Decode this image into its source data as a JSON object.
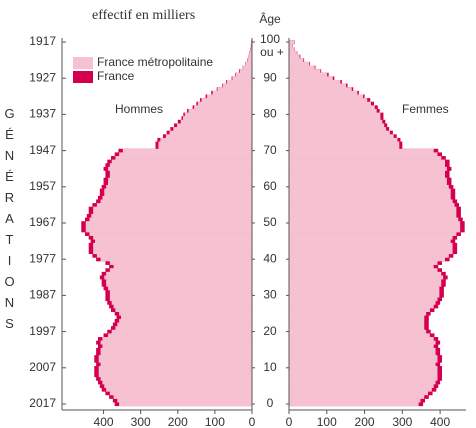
{
  "chart_data": {
    "type": "pyramid",
    "title": "effectif en milliers",
    "ylabel": "Âge",
    "age_top_note": "ou +",
    "y2label": "GÉNÉRATIONS",
    "men_label": "Hommes",
    "women_label": "Femmes",
    "xlim": [
      0,
      450
    ],
    "xticks": [
      0,
      100,
      200,
      300,
      400
    ],
    "ylim": [
      0,
      100
    ],
    "yticks": [
      0,
      10,
      20,
      30,
      40,
      50,
      60,
      70,
      80,
      90,
      100
    ],
    "y2lim": [
      2017,
      1917
    ],
    "y2ticks": [
      1917,
      1927,
      1937,
      1947,
      1957,
      1967,
      1977,
      1987,
      1997,
      2007,
      2017
    ],
    "ages": [
      0,
      1,
      2,
      3,
      4,
      5,
      6,
      7,
      8,
      9,
      10,
      11,
      12,
      13,
      14,
      15,
      16,
      17,
      18,
      19,
      20,
      21,
      22,
      23,
      24,
      25,
      26,
      27,
      28,
      29,
      30,
      31,
      32,
      33,
      34,
      35,
      36,
      37,
      38,
      39,
      40,
      41,
      42,
      43,
      44,
      45,
      46,
      47,
      48,
      49,
      50,
      51,
      52,
      53,
      54,
      55,
      56,
      57,
      58,
      59,
      60,
      61,
      62,
      63,
      64,
      65,
      66,
      67,
      68,
      69,
      70,
      71,
      72,
      73,
      74,
      75,
      76,
      77,
      78,
      79,
      80,
      81,
      82,
      83,
      84,
      85,
      86,
      87,
      88,
      89,
      90,
      91,
      92,
      93,
      94,
      95,
      96,
      97,
      98,
      99,
      100
    ],
    "series": [
      {
        "name": "France métropolitaine",
        "color": "#f6c1d0",
        "values_men": [
          358,
          363,
          373,
          383,
          393,
          398,
          403,
          408,
          413,
          413,
          413,
          408,
          413,
          413,
          408,
          408,
          403,
          408,
          403,
          388,
          378,
          368,
          363,
          358,
          353,
          358,
          368,
          373,
          378,
          383,
          383,
          383,
          388,
          393,
          393,
          398,
          393,
          383,
          373,
          383,
          408,
          418,
          428,
          428,
          428,
          423,
          428,
          438,
          448,
          448,
          448,
          438,
          433,
          428,
          428,
          418,
          408,
          403,
          398,
          398,
          393,
          388,
          388,
          383,
          383,
          388,
          383,
          378,
          368,
          358,
          348,
          252,
          252,
          247,
          232,
          222,
          212,
          202,
          192,
          186,
          181,
          171,
          156,
          146,
          136,
          121,
          106,
          93,
          78,
          68,
          53,
          43,
          33,
          24,
          17,
          12,
          8,
          6,
          4,
          2,
          1
        ],
        "values_women": [
          343,
          348,
          358,
          368,
          378,
          383,
          388,
          393,
          393,
          393,
          393,
          388,
          393,
          393,
          388,
          388,
          383,
          388,
          383,
          373,
          363,
          358,
          358,
          358,
          358,
          363,
          373,
          383,
          388,
          393,
          398,
          398,
          398,
          403,
          403,
          408,
          403,
          393,
          383,
          393,
          413,
          423,
          433,
          433,
          433,
          428,
          433,
          443,
          453,
          453,
          453,
          448,
          443,
          443,
          443,
          438,
          433,
          428,
          428,
          428,
          423,
          418,
          418,
          413,
          413,
          418,
          413,
          413,
          403,
          393,
          383,
          292,
          292,
          287,
          277,
          267,
          257,
          252,
          247,
          242,
          242,
          232,
          227,
          217,
          207,
          196,
          181,
          166,
          151,
          136,
          116,
          101,
          83,
          68,
          53,
          38,
          28,
          21,
          14,
          9,
          14
        ]
      },
      {
        "name": "France",
        "color": "#d4004f",
        "values_men": [
          370,
          375,
          385,
          395,
          405,
          410,
          415,
          420,
          425,
          425,
          425,
          420,
          425,
          425,
          420,
          420,
          415,
          420,
          415,
          400,
          390,
          380,
          375,
          370,
          365,
          370,
          380,
          385,
          390,
          395,
          395,
          395,
          400,
          405,
          405,
          410,
          405,
          395,
          385,
          395,
          420,
          430,
          440,
          440,
          440,
          435,
          440,
          450,
          460,
          460,
          460,
          450,
          445,
          440,
          440,
          430,
          420,
          415,
          410,
          410,
          405,
          400,
          400,
          395,
          395,
          400,
          395,
          390,
          380,
          370,
          360,
          260,
          260,
          255,
          240,
          230,
          220,
          210,
          200,
          190,
          185,
          175,
          160,
          150,
          140,
          125,
          110,
          95,
          80,
          70,
          55,
          45,
          35,
          25,
          18,
          13,
          9,
          7,
          5,
          3,
          2
        ],
        "values_women": [
          355,
          360,
          370,
          380,
          390,
          395,
          400,
          405,
          405,
          405,
          405,
          400,
          405,
          405,
          400,
          400,
          395,
          400,
          395,
          385,
          375,
          370,
          370,
          370,
          370,
          375,
          385,
          395,
          400,
          405,
          410,
          410,
          410,
          415,
          415,
          420,
          415,
          405,
          395,
          405,
          425,
          435,
          445,
          445,
          445,
          440,
          445,
          455,
          465,
          465,
          465,
          460,
          455,
          455,
          455,
          450,
          445,
          440,
          440,
          440,
          435,
          430,
          430,
          425,
          425,
          430,
          425,
          425,
          415,
          405,
          395,
          300,
          300,
          295,
          285,
          275,
          265,
          260,
          255,
          250,
          250,
          240,
          235,
          225,
          215,
          200,
          185,
          170,
          155,
          140,
          120,
          105,
          85,
          70,
          55,
          40,
          30,
          22,
          15,
          10,
          15
        ]
      }
    ]
  }
}
